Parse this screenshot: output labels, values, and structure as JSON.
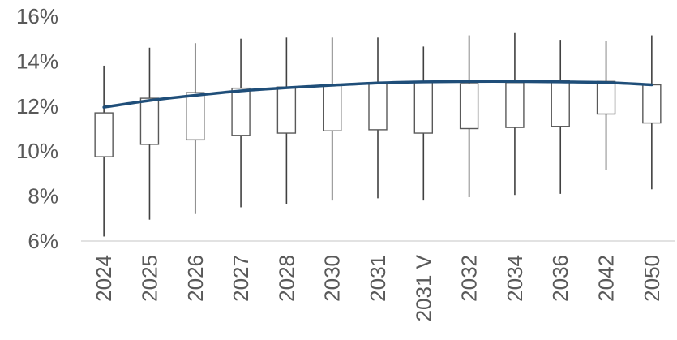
{
  "chart_data": {
    "type": "box",
    "title": "",
    "xlabel": "",
    "ylabel": "",
    "categories": [
      "2024",
      "2025",
      "2026",
      "2027",
      "2028",
      "2030",
      "2031",
      "2031 V",
      "2032",
      "2034",
      "2036",
      "2042",
      "2050"
    ],
    "boxes": [
      {
        "min": 6.2,
        "q1": 9.75,
        "q3": 11.7,
        "max": 13.8
      },
      {
        "min": 6.95,
        "q1": 10.3,
        "q3": 12.35,
        "max": 14.6
      },
      {
        "min": 7.2,
        "q1": 10.5,
        "q3": 12.6,
        "max": 14.8
      },
      {
        "min": 7.5,
        "q1": 10.7,
        "q3": 12.8,
        "max": 15.0
      },
      {
        "min": 7.65,
        "q1": 10.8,
        "q3": 12.85,
        "max": 15.05
      },
      {
        "min": 7.8,
        "q1": 10.9,
        "q3": 12.95,
        "max": 15.05
      },
      {
        "min": 7.9,
        "q1": 10.95,
        "q3": 13.05,
        "max": 15.05
      },
      {
        "min": 7.8,
        "q1": 10.8,
        "q3": 13.05,
        "max": 14.65
      },
      {
        "min": 7.95,
        "q1": 11.0,
        "q3": 13.0,
        "max": 15.15
      },
      {
        "min": 8.05,
        "q1": 11.05,
        "q3": 13.05,
        "max": 15.25
      },
      {
        "min": 8.1,
        "q1": 11.1,
        "q3": 13.15,
        "max": 14.95
      },
      {
        "min": 9.15,
        "q1": 11.65,
        "q3": 13.1,
        "max": 14.9
      },
      {
        "min": 8.3,
        "q1": 11.25,
        "q3": 12.95,
        "max": 15.15
      }
    ],
    "trend_line": {
      "values": [
        11.95,
        12.25,
        12.48,
        12.68,
        12.82,
        12.93,
        13.03,
        13.08,
        13.1,
        13.1,
        13.08,
        13.05,
        12.95
      ],
      "color": "#1F4E79"
    },
    "y_axis": {
      "min": 6,
      "max": 16,
      "ticks": [
        6,
        8,
        10,
        12,
        14,
        16
      ],
      "tick_labels": [
        "6%",
        "8%",
        "10%",
        "12%",
        "14%",
        "16%"
      ]
    },
    "grid": false,
    "legend": "none",
    "colors": {
      "box_stroke": "#595959",
      "whisker": "#404040",
      "axis": "#D9D9D9",
      "text": "#595959"
    }
  }
}
